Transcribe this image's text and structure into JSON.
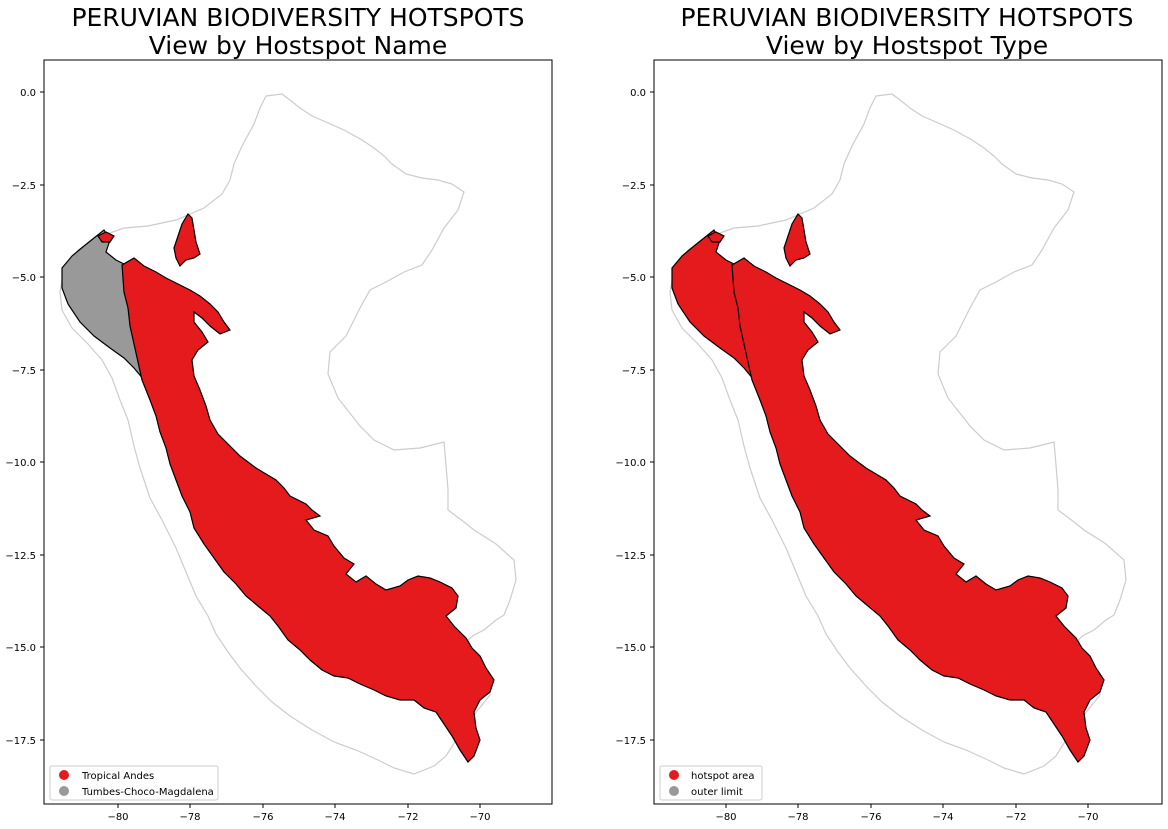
{
  "chart_data": [
    {
      "type": "map",
      "title_line1": "PERUVIAN BIODIVERSITY HOTSPOTS",
      "title_line2": "View by Hostspot Name",
      "xlim": [
        -82,
        -68.4
      ],
      "ylim": [
        -19.3,
        0.9
      ],
      "xticks": [
        "−80",
        "−78",
        "−76",
        "−74",
        "−72",
        "−70"
      ],
      "yticks": [
        "0.0",
        "−2.5",
        "−5.0",
        "−7.5",
        "−10.0",
        "−12.5",
        "−15.0",
        "−17.5"
      ],
      "grid": false,
      "legend_position": "lower-left",
      "legend": [
        {
          "label": "Tropical Andes",
          "color": "#e41a1c"
        },
        {
          "label": "Tumbes-Choco-Magdalena",
          "color": "#999999"
        }
      ]
    },
    {
      "type": "map",
      "title_line1": "PERUVIAN BIODIVERSITY HOTSPOTS",
      "title_line2": "View by Hostspot Type",
      "xlim": [
        -82,
        -68.4
      ],
      "ylim": [
        -19.3,
        0.9
      ],
      "xticks": [
        "−80",
        "−78",
        "−76",
        "−74",
        "−72",
        "−70"
      ],
      "yticks": [
        "0.0",
        "−2.5",
        "−5.0",
        "−7.5",
        "−10.0",
        "−12.5",
        "−15.0",
        "−17.5"
      ],
      "grid": false,
      "legend_position": "lower-left",
      "legend": [
        {
          "label": "hotspot area",
          "color": "#e41a1c"
        },
        {
          "label": "outer limit",
          "color": "#999999"
        }
      ]
    }
  ],
  "colors": {
    "country_outline": "#cccccc",
    "hotspot_edge": "#000000"
  }
}
